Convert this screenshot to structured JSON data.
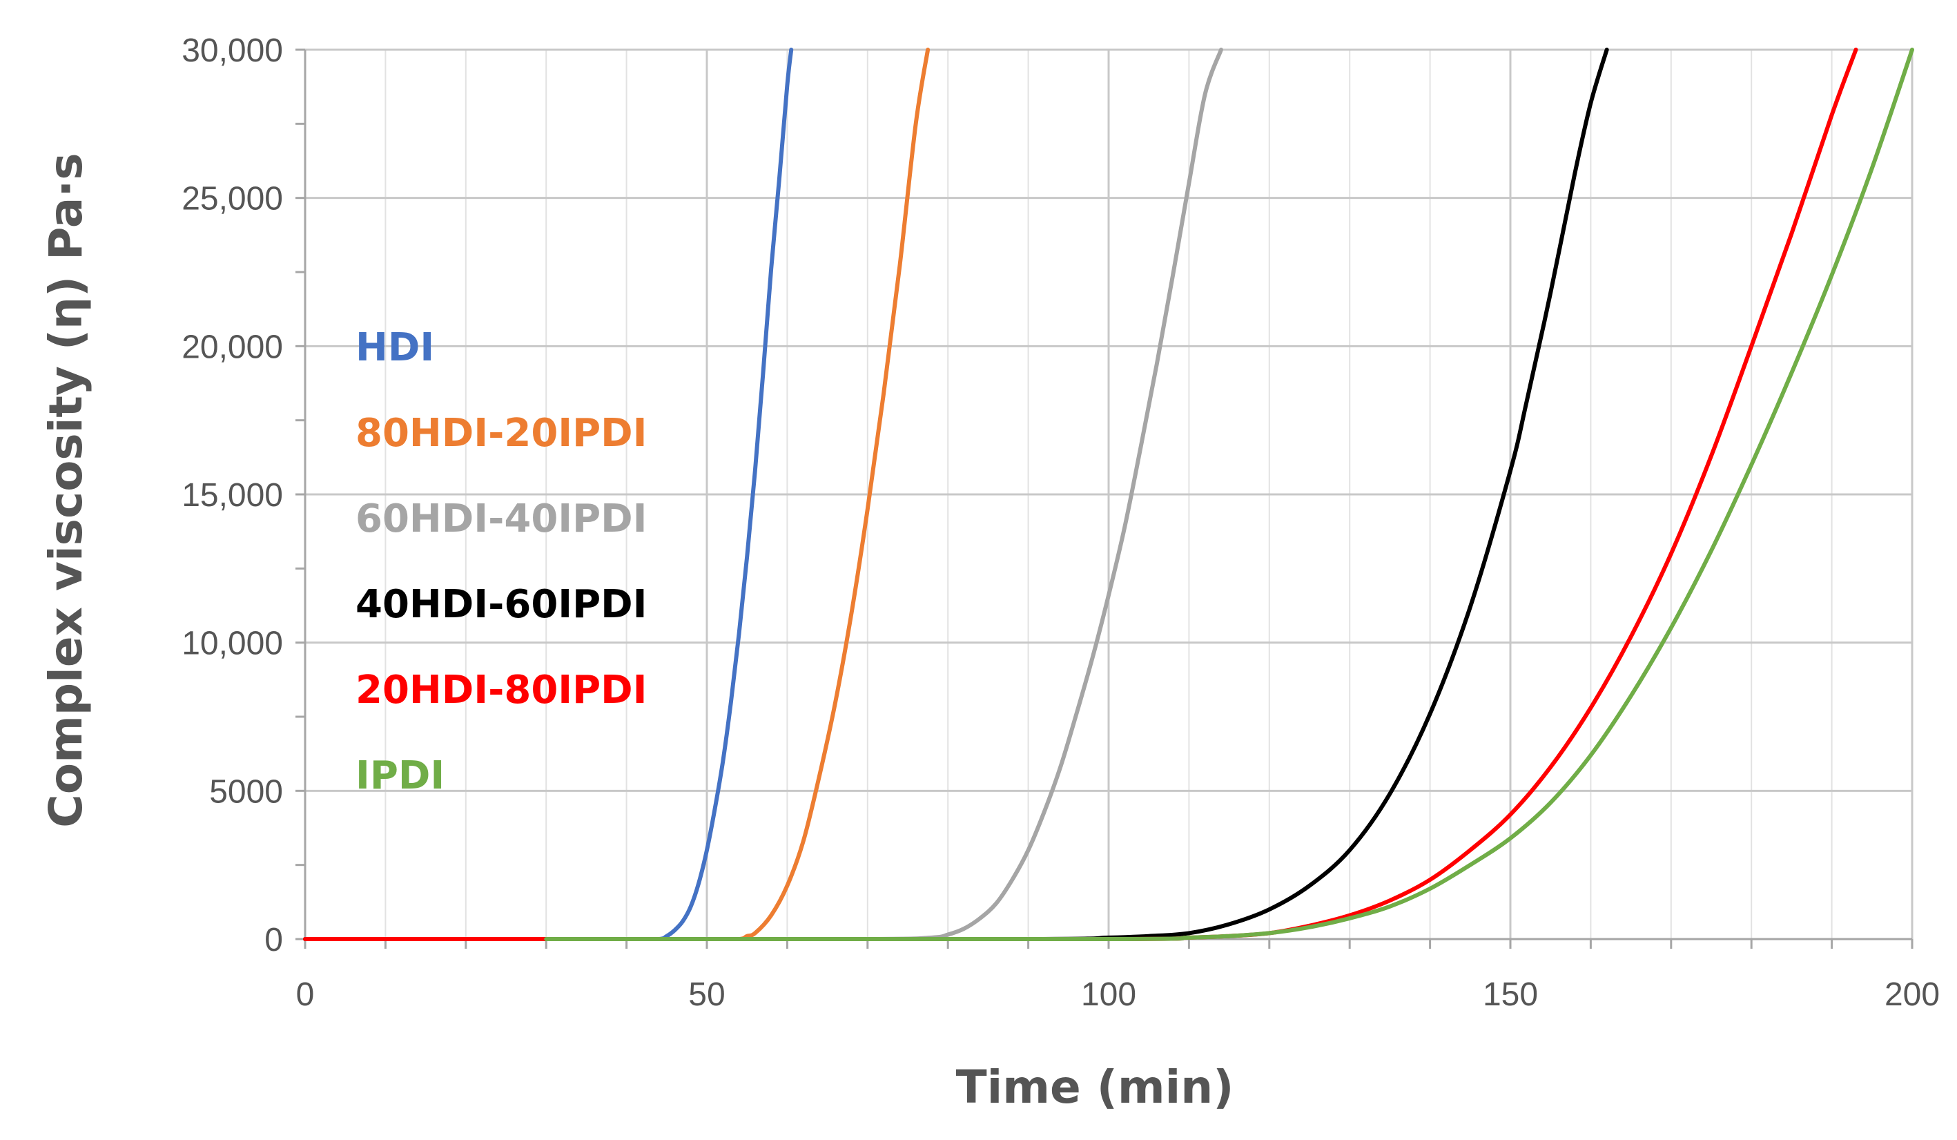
{
  "chart_data": {
    "type": "line",
    "title": "",
    "xlabel": "Time (min)",
    "ylabel": "Complex viscosity (η) Pa·s",
    "xlim": [
      0,
      200
    ],
    "ylim": [
      0,
      30000
    ],
    "x_major_ticks": [
      0,
      50,
      100,
      150,
      200
    ],
    "x_tick_labels": [
      "0",
      "50",
      "100",
      "150",
      "200"
    ],
    "x_minor_step": 10,
    "y_major_ticks": [
      0,
      5000,
      10000,
      15000,
      20000,
      25000,
      30000
    ],
    "y_tick_labels": [
      "0",
      "5000",
      "10,000",
      "15,000",
      "20,000",
      "25,000",
      "30,000"
    ],
    "y_minor_step": 2500,
    "grid": true,
    "legend_position": "left, inside plot",
    "series": [
      {
        "name": "HDI",
        "color": "#4472C4",
        "x": [
          0,
          30,
          40,
          44,
          45,
          46,
          47,
          48,
          49,
          50,
          51,
          52,
          53,
          54,
          55,
          56,
          57,
          58,
          59,
          60,
          60.5
        ],
        "y": [
          0,
          0,
          0,
          0,
          100,
          300,
          600,
          1100,
          1900,
          3000,
          4400,
          6000,
          8000,
          10300,
          12900,
          15800,
          19100,
          22600,
          25600,
          28800,
          30000
        ]
      },
      {
        "name": "80HDI-20IPDI",
        "color": "#ED7D31",
        "x": [
          0,
          30,
          50,
          54,
          55,
          56,
          58,
          60,
          62,
          64,
          66,
          68,
          70,
          72,
          74,
          76,
          77.5
        ],
        "y": [
          0,
          0,
          0,
          0,
          100,
          200,
          800,
          1800,
          3300,
          5500,
          8000,
          11000,
          14500,
          18400,
          22700,
          27500,
          30000
        ]
      },
      {
        "name": "60HDI-40IPDI",
        "color": "#A5A5A5",
        "x": [
          0,
          30,
          70,
          78,
          80,
          82,
          84,
          86,
          88,
          90,
          92,
          94,
          96,
          98,
          100,
          102,
          104,
          106,
          108,
          110,
          112,
          114
        ],
        "y": [
          0,
          0,
          0,
          50,
          150,
          350,
          700,
          1200,
          2000,
          3000,
          4300,
          5800,
          7600,
          9500,
          11600,
          13900,
          16600,
          19400,
          22400,
          25500,
          28500,
          30000
        ]
      },
      {
        "name": "40HDI-60IPDI",
        "color": "#000000",
        "x": [
          0,
          30,
          90,
          100,
          105,
          110,
          115,
          120,
          125,
          130,
          135,
          140,
          145,
          150,
          152,
          155,
          158,
          160,
          162
        ],
        "y": [
          0,
          0,
          0,
          50,
          100,
          200,
          500,
          1000,
          1800,
          3000,
          4900,
          7600,
          11200,
          15800,
          18100,
          21800,
          25800,
          28200,
          30000
        ]
      },
      {
        "name": "20HDI-80IPDI",
        "color": "#FF0000",
        "x": [
          0,
          30,
          100,
          110,
          115,
          120,
          125,
          130,
          135,
          140,
          145,
          150,
          155,
          160,
          165,
          170,
          175,
          180,
          185,
          190,
          193
        ],
        "y": [
          0,
          0,
          0,
          50,
          100,
          200,
          450,
          800,
          1300,
          2000,
          3000,
          4200,
          5800,
          7800,
          10200,
          13000,
          16300,
          20000,
          23800,
          27800,
          30000
        ]
      },
      {
        "name": "IPDI",
        "color": "#70AD47",
        "x": [
          30,
          100,
          110,
          115,
          120,
          125,
          130,
          135,
          140,
          145,
          150,
          155,
          160,
          165,
          170,
          175,
          180,
          185,
          190,
          195,
          200
        ],
        "y": [
          0,
          0,
          50,
          100,
          200,
          400,
          700,
          1100,
          1700,
          2500,
          3400,
          4600,
          6200,
          8200,
          10500,
          13100,
          16000,
          19100,
          22400,
          26000,
          30000
        ]
      }
    ]
  }
}
